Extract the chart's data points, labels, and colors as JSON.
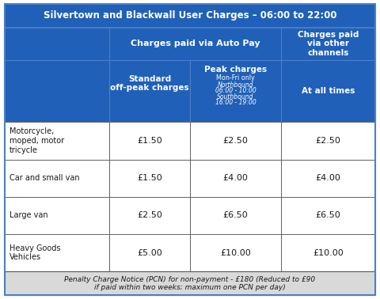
{
  "title": "Silvertown and Blackwall User Charges – 06:00 to 22:00",
  "blue": "#2060b8",
  "white": "#ffffff",
  "black": "#1a1a1a",
  "footer_bg": "#d9d9d9",
  "cell_border": "#555555",
  "header_border": "#4a80c8",
  "outer_border": "#4a80c8",
  "rows": [
    [
      "Motorcycle,\nmoped, motor\ntricycle",
      "£1.50",
      "£2.50",
      "£2.50"
    ],
    [
      "Car and small van",
      "£1.50",
      "£4.00",
      "£4.00"
    ],
    [
      "Large van",
      "£2.50",
      "£6.50",
      "£6.50"
    ],
    [
      "Heavy Goods\nVehicles",
      "£5.00",
      "£10.00",
      "£10.00"
    ]
  ],
  "footer": "Penalty Charge Notice (PCN) for non-payment - £180 (Reduced to £90\nif paid within two weeks; maximum one PCN per day)",
  "figsize": [
    4.8,
    3.78
  ],
  "dpi": 100
}
